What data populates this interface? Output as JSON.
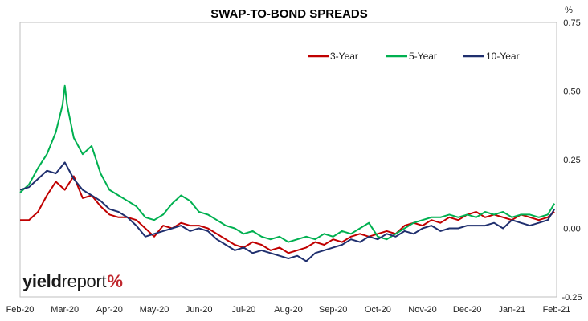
{
  "chart_data": {
    "type": "line",
    "title": "SWAP-TO-BOND SPREADS",
    "unit": "%",
    "ylim": [
      -0.25,
      0.75
    ],
    "yticks": [
      "0.75",
      "0.50",
      "0.25",
      "0.00",
      "-0.25"
    ],
    "ytick_values": [
      0.75,
      0.5,
      0.25,
      0.0,
      -0.25
    ],
    "xticks": [
      "Feb-20",
      "Mar-20",
      "Apr-20",
      "May-20",
      "Jun-20",
      "Jul-20",
      "Aug-20",
      "Sep-20",
      "Oct-20",
      "Nov-20",
      "Dec-20",
      "Jan-21",
      "Feb-21"
    ],
    "grid": false,
    "legend_placement": "top-right",
    "series": [
      {
        "name": "3-Year",
        "color": "#c00000",
        "x": [
          0,
          0.2,
          0.4,
          0.6,
          0.8,
          1.0,
          1.2,
          1.4,
          1.6,
          1.8,
          2.0,
          2.2,
          2.4,
          2.6,
          2.8,
          3.0,
          3.2,
          3.4,
          3.6,
          3.8,
          4.0,
          4.2,
          4.4,
          4.6,
          4.8,
          5.0,
          5.2,
          5.4,
          5.6,
          5.8,
          6.0,
          6.2,
          6.4,
          6.6,
          6.8,
          7.0,
          7.2,
          7.4,
          7.6,
          7.8,
          8.0,
          8.2,
          8.4,
          8.6,
          8.8,
          9.0,
          9.2,
          9.4,
          9.6,
          9.8,
          10.0,
          10.2,
          10.4,
          10.6,
          10.8,
          11.0,
          11.2,
          11.4,
          11.6,
          11.8,
          11.95
        ],
        "values": [
          0.03,
          0.03,
          0.06,
          0.12,
          0.17,
          0.14,
          0.19,
          0.11,
          0.12,
          0.08,
          0.05,
          0.04,
          0.04,
          0.03,
          0.0,
          -0.03,
          0.01,
          0.0,
          0.02,
          0.01,
          0.01,
          0.0,
          -0.02,
          -0.04,
          -0.06,
          -0.07,
          -0.05,
          -0.06,
          -0.08,
          -0.07,
          -0.09,
          -0.08,
          -0.07,
          -0.05,
          -0.06,
          -0.04,
          -0.05,
          -0.03,
          -0.02,
          -0.03,
          -0.02,
          -0.01,
          -0.02,
          0.01,
          0.02,
          0.01,
          0.03,
          0.02,
          0.04,
          0.03,
          0.05,
          0.06,
          0.04,
          0.05,
          0.04,
          0.03,
          0.05,
          0.04,
          0.03,
          0.04,
          0.06
        ]
      },
      {
        "name": "5-Year",
        "color": "#00b050",
        "x": [
          0,
          0.2,
          0.4,
          0.6,
          0.8,
          0.95,
          1.0,
          1.05,
          1.2,
          1.4,
          1.6,
          1.8,
          2.0,
          2.2,
          2.4,
          2.6,
          2.8,
          3.0,
          3.2,
          3.4,
          3.6,
          3.8,
          4.0,
          4.2,
          4.4,
          4.6,
          4.8,
          5.0,
          5.2,
          5.4,
          5.6,
          5.8,
          6.0,
          6.2,
          6.4,
          6.6,
          6.8,
          7.0,
          7.2,
          7.4,
          7.6,
          7.8,
          8.0,
          8.2,
          8.4,
          8.6,
          8.8,
          9.0,
          9.2,
          9.4,
          9.6,
          9.8,
          10.0,
          10.2,
          10.4,
          10.6,
          10.8,
          11.0,
          11.2,
          11.4,
          11.6,
          11.8,
          11.95
        ],
        "values": [
          0.13,
          0.16,
          0.22,
          0.27,
          0.35,
          0.45,
          0.52,
          0.45,
          0.33,
          0.27,
          0.3,
          0.2,
          0.14,
          0.12,
          0.1,
          0.08,
          0.04,
          0.03,
          0.05,
          0.09,
          0.12,
          0.1,
          0.06,
          0.05,
          0.03,
          0.01,
          0.0,
          -0.02,
          -0.01,
          -0.03,
          -0.04,
          -0.03,
          -0.05,
          -0.04,
          -0.03,
          -0.04,
          -0.02,
          -0.03,
          -0.01,
          -0.02,
          0.0,
          0.02,
          -0.03,
          -0.04,
          -0.02,
          0.0,
          0.02,
          0.03,
          0.04,
          0.04,
          0.05,
          0.04,
          0.05,
          0.04,
          0.06,
          0.05,
          0.06,
          0.04,
          0.05,
          0.05,
          0.04,
          0.05,
          0.09
        ]
      },
      {
        "name": "10-Year",
        "color": "#1f2f6e",
        "x": [
          0,
          0.2,
          0.4,
          0.6,
          0.8,
          1.0,
          1.2,
          1.4,
          1.6,
          1.8,
          2.0,
          2.2,
          2.4,
          2.6,
          2.8,
          3.0,
          3.2,
          3.4,
          3.6,
          3.8,
          4.0,
          4.2,
          4.4,
          4.6,
          4.8,
          5.0,
          5.2,
          5.4,
          5.6,
          5.8,
          6.0,
          6.2,
          6.4,
          6.6,
          6.8,
          7.0,
          7.2,
          7.4,
          7.6,
          7.8,
          8.0,
          8.2,
          8.4,
          8.6,
          8.8,
          9.0,
          9.2,
          9.4,
          9.6,
          9.8,
          10.0,
          10.2,
          10.4,
          10.6,
          10.8,
          11.0,
          11.2,
          11.4,
          11.6,
          11.8,
          11.95
        ],
        "values": [
          0.14,
          0.15,
          0.18,
          0.21,
          0.2,
          0.24,
          0.18,
          0.14,
          0.12,
          0.1,
          0.07,
          0.06,
          0.04,
          0.01,
          -0.03,
          -0.02,
          -0.01,
          0.0,
          0.01,
          -0.01,
          0.0,
          -0.01,
          -0.04,
          -0.06,
          -0.08,
          -0.07,
          -0.09,
          -0.08,
          -0.09,
          -0.1,
          -0.11,
          -0.1,
          -0.12,
          -0.09,
          -0.08,
          -0.07,
          -0.06,
          -0.04,
          -0.05,
          -0.03,
          -0.04,
          -0.02,
          -0.03,
          -0.01,
          -0.02,
          0.0,
          0.01,
          -0.01,
          0.0,
          0.0,
          0.01,
          0.01,
          0.01,
          0.02,
          0.0,
          0.03,
          0.02,
          0.01,
          0.02,
          0.03,
          0.07
        ]
      }
    ]
  },
  "logo": {
    "yield": "yield",
    "report": "report",
    "pct": "%"
  }
}
